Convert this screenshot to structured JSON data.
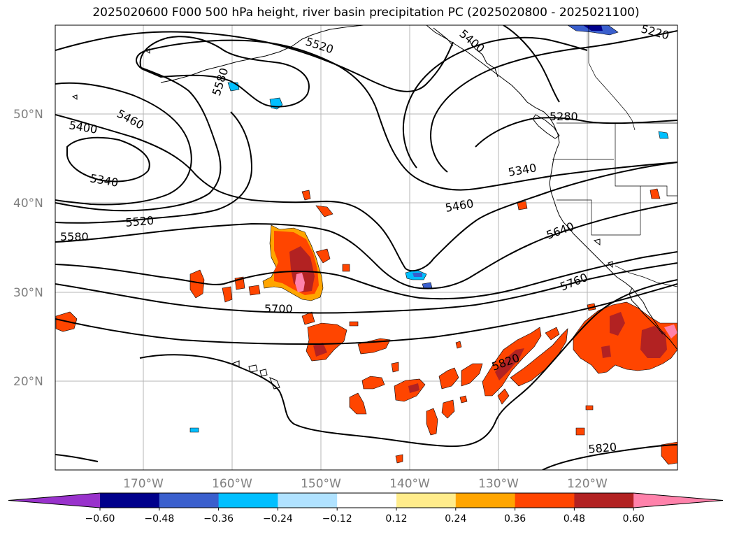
{
  "title": "2025020600 F000 500 hPa height, river basin precipitation PC (2025020800 - 2025021100)",
  "map": {
    "lat_labels": [
      "50°N",
      "40°N",
      "30°N",
      "20°N"
    ],
    "lon_labels": [
      "170°W",
      "160°W",
      "150°W",
      "140°W",
      "130°W",
      "120°W"
    ],
    "contour_labels": [
      "5520",
      "5580",
      "5460",
      "5400",
      "5340",
      "5520",
      "5580",
      "5700",
      "5340",
      "5460",
      "5640",
      "5760",
      "5820",
      "5820",
      "5280",
      "5220",
      "5400"
    ]
  },
  "colorbar": {
    "colors": [
      "#9932cc",
      "#00008b",
      "#3a5fcd",
      "#00bfff",
      "#b0e2ff",
      "#ffffff",
      "#ffec8b",
      "#ffa500",
      "#ff4500",
      "#b22222",
      "#ff82ab"
    ],
    "tick_labels": [
      "−0.60",
      "−0.48",
      "−0.36",
      "−0.24",
      "−0.12",
      "0.12",
      "0.24",
      "0.36",
      "0.48",
      "0.60"
    ]
  }
}
